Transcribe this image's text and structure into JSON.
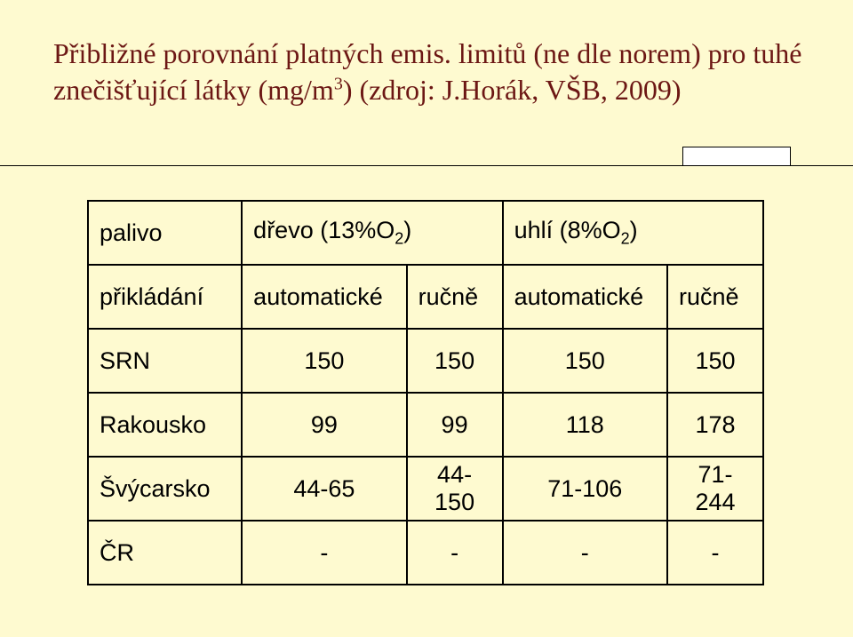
{
  "background_color": "#fefad0",
  "title": {
    "line1": "Přibližné porovnání platných emis. limitů (ne dle norem) pro tuhé",
    "line2_pre": "znečišťující látky (mg/m",
    "line2_sup": "3",
    "line2_post": ") (zdroj: J.Horák, VŠB, 2009)"
  },
  "table": {
    "r0c0": "palivo",
    "r0c1_pre": "dřevo (13%O",
    "r0c1_sub": "2",
    "r0c1_post": ")",
    "r0c2_pre": "uhlí (8%O",
    "r0c2_sub": "2",
    "r0c2_post": ")",
    "r1c0": "přikládání",
    "r1c1": "automatické",
    "r1c2": "ručně",
    "r1c3": "automatické",
    "r1c4": "ručně",
    "rows": [
      {
        "label": "SRN",
        "c1": "150",
        "c2": "150",
        "c3": "150",
        "c4": "150"
      },
      {
        "label": "Rakousko",
        "c1": "99",
        "c2": "99",
        "c3": "118",
        "c4": "178"
      },
      {
        "label": "Švýcarsko",
        "c1": "44-65",
        "c2": "44-150",
        "c3": "71-106",
        "c4": "71-244"
      },
      {
        "label": "ČR",
        "c1": "-",
        "c2": "-",
        "c3": "-",
        "c4": "-"
      }
    ]
  }
}
